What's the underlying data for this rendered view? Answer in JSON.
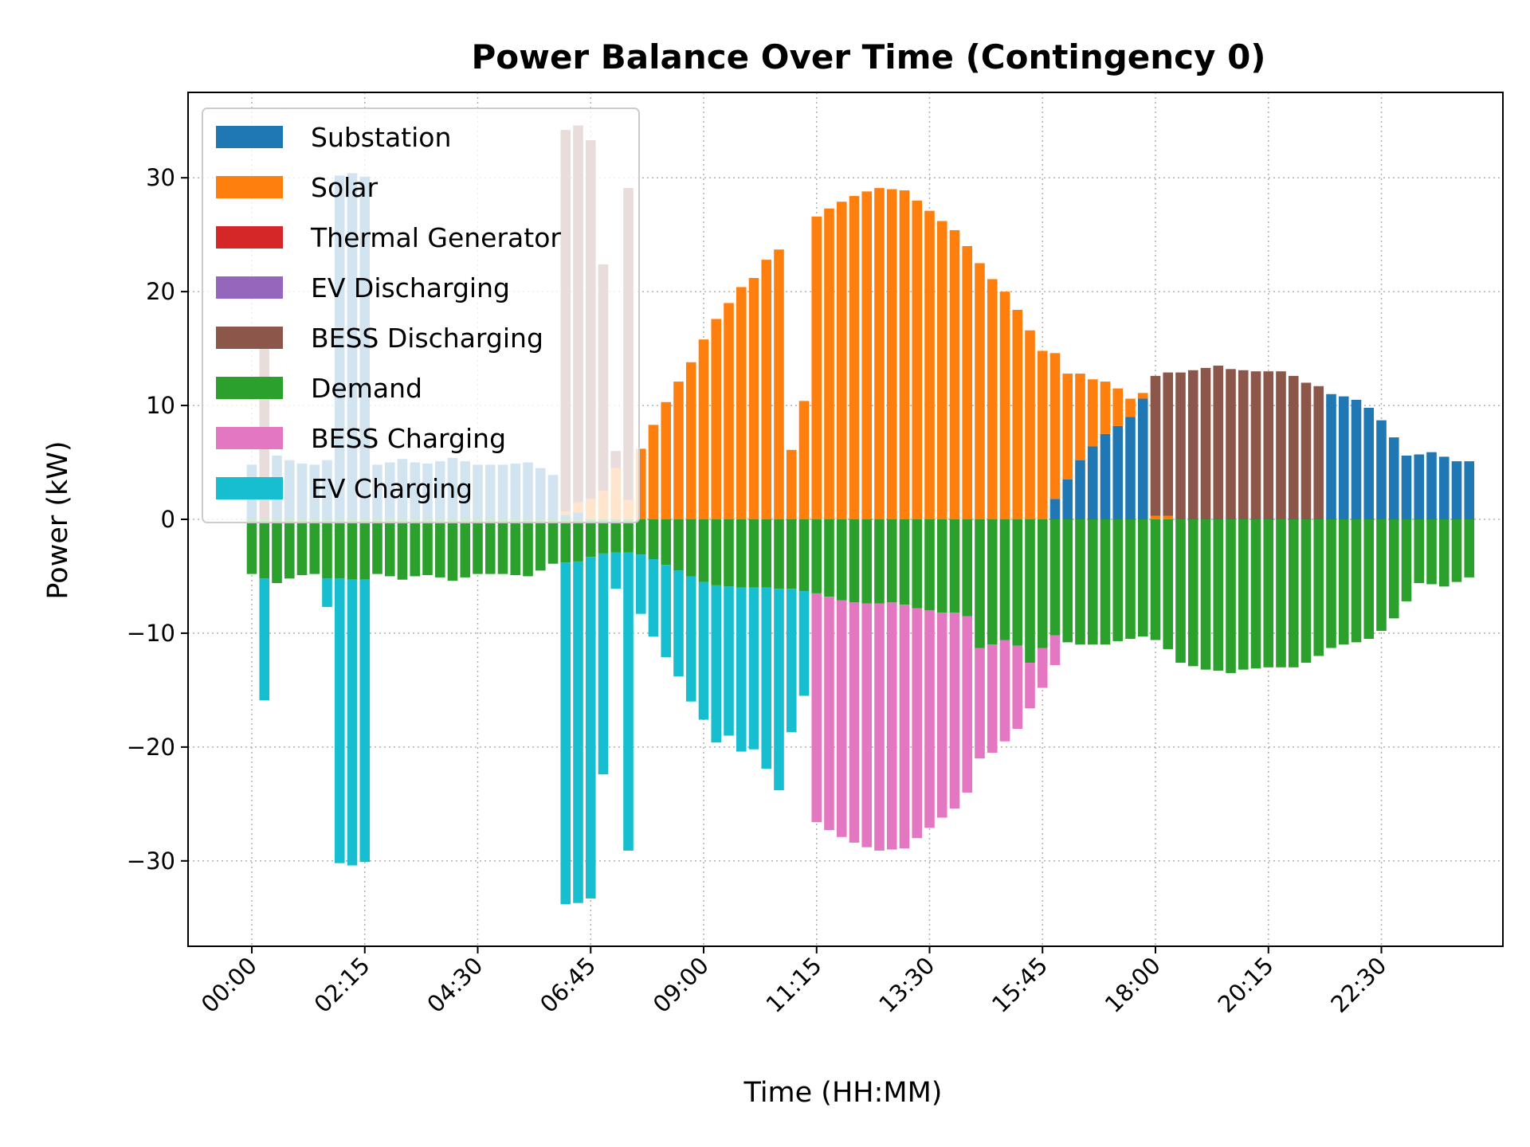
{
  "chart_data": {
    "type": "bar",
    "stacked": true,
    "title": "Power Balance Over Time (Contingency 0)",
    "xlabel": "Time (HH:MM)",
    "ylabel": "Power (kW)",
    "ylim": [
      -37.5,
      37.5
    ],
    "y_ticks": [
      -30,
      -20,
      -10,
      0,
      10,
      20,
      30
    ],
    "y_tick_labels": [
      "−30",
      "−20",
      "−10",
      "0",
      "10",
      "20",
      "30"
    ],
    "x_ticks": [
      "00:00",
      "02:15",
      "04:30",
      "06:45",
      "09:00",
      "11:15",
      "13:30",
      "15:45",
      "18:00",
      "20:15",
      "22:30"
    ],
    "x_tick_indices": [
      0,
      9,
      18,
      27,
      36,
      45,
      54,
      63,
      72,
      81,
      90
    ],
    "interval_minutes": 15,
    "grid": true,
    "legend_position": "upper-left",
    "colors": {
      "Substation": "#1f77b4",
      "Solar": "#ff7f0e",
      "Thermal Generator": "#d62728",
      "EV Discharging": "#9467bd",
      "BESS Discharging": "#8c564b",
      "Demand": "#2ca02c",
      "BESS Charging": "#e377c2",
      "EV Charging": "#17becf"
    },
    "legend": [
      "Substation",
      "Solar",
      "Thermal Generator",
      "EV Discharging",
      "BESS Discharging",
      "Demand",
      "BESS Charging",
      "EV Charging"
    ],
    "series": [
      {
        "name": "Substation",
        "values": [
          4.8,
          0,
          5.6,
          5.2,
          4.9,
          4.8,
          5.2,
          30.2,
          30.4,
          30.1,
          4.8,
          5.0,
          5.3,
          5.0,
          4.9,
          5.1,
          5.4,
          5.1,
          4.8,
          4.8,
          4.8,
          4.9,
          5.0,
          4.5,
          3.9,
          0.4,
          0.6,
          0,
          0,
          0,
          0,
          0,
          0,
          0,
          0,
          0,
          0,
          0,
          0,
          0,
          0,
          0,
          0,
          0,
          0,
          0,
          0,
          0,
          0,
          0,
          0,
          0,
          0,
          0,
          0,
          0,
          0,
          0,
          0,
          0,
          0,
          0,
          0,
          0,
          1.8,
          3.5,
          5.2,
          6.4,
          7.5,
          8.2,
          9.0,
          10.6,
          0,
          0,
          0,
          0,
          0,
          0,
          0,
          0,
          0,
          0,
          0,
          0,
          0,
          0,
          11.0,
          10.8,
          10.5,
          9.8,
          8.7,
          7.2,
          5.6,
          5.7,
          5.9,
          5.5,
          5.1,
          5.1
        ]
      },
      {
        "name": "Solar",
        "values": [
          0,
          0,
          0,
          0,
          0,
          0,
          0,
          0,
          0,
          0,
          0,
          0,
          0,
          0,
          0,
          0,
          0,
          0,
          0,
          0,
          0,
          0,
          0,
          0,
          0,
          0.3,
          0.9,
          1.8,
          2.5,
          4.5,
          1.7,
          6.2,
          8.3,
          10.3,
          12.1,
          13.8,
          15.8,
          17.6,
          19.0,
          20.4,
          21.2,
          22.8,
          23.7,
          6.1,
          10.4,
          26.6,
          27.3,
          27.9,
          28.4,
          28.8,
          29.1,
          29.0,
          28.9,
          28.0,
          27.1,
          26.2,
          25.4,
          24.0,
          22.5,
          21.1,
          20.0,
          18.4,
          16.6,
          14.8,
          12.8,
          9.3,
          7.6,
          5.9,
          4.6,
          3.3,
          1.6,
          0.5,
          0.3,
          0.3,
          0,
          0,
          0,
          0,
          0,
          0,
          0,
          0,
          0,
          0,
          0,
          0,
          0,
          0,
          0,
          0,
          0,
          0,
          0,
          0,
          0,
          0,
          0
        ]
      },
      {
        "name": "Thermal Generator",
        "values": [
          0,
          0,
          0,
          0,
          0,
          0,
          0,
          0,
          0,
          0,
          0,
          0,
          0,
          0,
          0,
          0,
          0,
          0,
          0,
          0,
          0,
          0,
          0,
          0,
          0,
          0,
          0,
          0,
          0,
          0,
          0,
          0,
          0,
          0,
          0,
          0,
          0,
          0,
          0,
          0,
          0,
          0,
          0,
          0,
          0,
          0,
          0,
          0,
          0,
          0,
          0,
          0,
          0,
          0,
          0,
          0,
          0,
          0,
          0,
          0,
          0,
          0,
          0,
          0,
          0,
          0,
          0,
          0,
          0,
          0,
          0,
          0,
          0,
          0,
          0,
          0,
          0,
          0,
          0,
          0,
          0,
          0,
          0,
          0,
          0,
          0,
          0,
          0,
          0,
          0,
          0,
          0,
          0,
          0,
          0,
          0
        ]
      },
      {
        "name": "EV Discharging",
        "values": [
          0,
          0,
          0,
          0,
          0,
          0,
          0,
          0,
          0,
          0,
          0,
          0,
          0,
          0,
          0,
          0,
          0,
          0,
          0,
          0,
          0,
          0,
          0,
          0,
          0,
          0,
          0,
          0,
          0,
          0,
          0,
          0,
          0,
          0,
          0,
          0,
          0,
          0,
          0,
          0,
          0,
          0,
          0,
          0,
          0,
          0,
          0,
          0,
          0,
          0,
          0,
          0,
          0,
          0,
          0,
          0,
          0,
          0,
          0,
          0,
          0,
          0,
          0,
          0,
          0,
          0,
          0,
          0,
          0,
          0,
          0,
          0,
          0,
          0,
          0,
          0,
          0,
          0,
          0,
          0,
          0,
          0,
          0,
          0,
          0,
          0,
          0,
          0,
          0,
          0,
          0,
          0,
          0,
          0,
          0,
          0,
          0
        ]
      },
      {
        "name": "BESS Discharging",
        "values": [
          0,
          15.9,
          0,
          0,
          0,
          0,
          0,
          0,
          0,
          0,
          0,
          0,
          0,
          0,
          0,
          0,
          0,
          0,
          0,
          0,
          0,
          0,
          0,
          0,
          0,
          33.5,
          33.1,
          31.5,
          19.9,
          1.5,
          27.4,
          0,
          0,
          0,
          0,
          0,
          0,
          0,
          0,
          0,
          0,
          0,
          0,
          0,
          0,
          0,
          0,
          0,
          0,
          0,
          0,
          0,
          0,
          0,
          0,
          0,
          0,
          0,
          0,
          0,
          0,
          0,
          0,
          0,
          0,
          0,
          0,
          0,
          0,
          0,
          0,
          0,
          12.3,
          12.6,
          12.9,
          13.1,
          13.3,
          13.5,
          13.2,
          13.1,
          13.0,
          13.0,
          13.0,
          12.6,
          12.0,
          11.7,
          0,
          0,
          0,
          0,
          0,
          0,
          0,
          0,
          0,
          0,
          0,
          0
        ]
      },
      {
        "name": "Demand",
        "values": [
          -4.8,
          -5.2,
          -5.6,
          -5.2,
          -4.9,
          -4.8,
          -5.2,
          -5.2,
          -5.3,
          -5.3,
          -4.8,
          -5.0,
          -5.3,
          -5.0,
          -4.9,
          -5.1,
          -5.4,
          -5.1,
          -4.8,
          -4.8,
          -4.8,
          -4.9,
          -5.0,
          -4.5,
          -3.9,
          -3.8,
          -3.7,
          -3.3,
          -3.0,
          -2.9,
          -2.9,
          -3.1,
          -3.5,
          -4.0,
          -4.5,
          -5.0,
          -5.5,
          -5.8,
          -5.9,
          -6.0,
          -6.0,
          -6.0,
          -6.1,
          -6.1,
          -6.3,
          -6.5,
          -6.8,
          -7.1,
          -7.3,
          -7.4,
          -7.4,
          -7.3,
          -7.5,
          -7.8,
          -8.0,
          -8.2,
          -8.2,
          -8.5,
          -11.3,
          -11.0,
          -10.6,
          -11.1,
          -12.6,
          -11.3,
          -10.2,
          -10.8,
          -11.0,
          -11.0,
          -11.0,
          -10.7,
          -10.5,
          -10.3,
          -10.6,
          -11.4,
          -12.6,
          -12.9,
          -13.2,
          -13.3,
          -13.5,
          -13.2,
          -13.1,
          -13.0,
          -13.0,
          -13.0,
          -12.6,
          -12.0,
          -11.3,
          -11.0,
          -10.8,
          -10.5,
          -9.8,
          -8.7,
          -7.2,
          -5.6,
          -5.7,
          -5.9,
          -5.5,
          -5.1,
          -5.1
        ]
      },
      {
        "name": "BESS Charging",
        "values": [
          0,
          0,
          0,
          0,
          0,
          0,
          0,
          0,
          0,
          0,
          0,
          0,
          0,
          0,
          0,
          0,
          0,
          0,
          0,
          0,
          0,
          0,
          0,
          0,
          0,
          0,
          0,
          0,
          0,
          0,
          0,
          0,
          0,
          0,
          0,
          0,
          0,
          0,
          0,
          0,
          0,
          0,
          0,
          0,
          0,
          -20.1,
          -20.5,
          -20.8,
          -21.1,
          -21.4,
          -21.7,
          -21.7,
          -21.4,
          -20.2,
          -19.1,
          -18.0,
          -17.2,
          -15.5,
          -9.7,
          -9.5,
          -8.9,
          -7.3,
          -4.0,
          -3.5,
          -2.6,
          0,
          0,
          0,
          0,
          0,
          0,
          0,
          0,
          0,
          0,
          0,
          0,
          0,
          0,
          0,
          0,
          0,
          0,
          0,
          0,
          0,
          0,
          0,
          0,
          0,
          0,
          0,
          0,
          0,
          0,
          0,
          0
        ]
      },
      {
        "name": "EV Charging",
        "values": [
          0,
          -10.7,
          0,
          0,
          0,
          0,
          -2.5,
          -25.0,
          -25.1,
          -24.8,
          0,
          0,
          0,
          0,
          0,
          0,
          0,
          0,
          0,
          0,
          0,
          0,
          0,
          0,
          0,
          -30.0,
          -30.0,
          -30.0,
          -19.4,
          -3.2,
          -26.2,
          -5.2,
          -6.8,
          -8.1,
          -9.3,
          -11.0,
          -12.1,
          -13.8,
          -13.1,
          -14.4,
          -14.2,
          -15.9,
          -17.7,
          -12.6,
          -9.2,
          0,
          0,
          0,
          0,
          0,
          0,
          0,
          0,
          0,
          0,
          0,
          0,
          0,
          0,
          0,
          0,
          0,
          0,
          0,
          0,
          0,
          0,
          0,
          0,
          0,
          0,
          0,
          0,
          0,
          0,
          0,
          0,
          0,
          0,
          0,
          0,
          0,
          0,
          0,
          0,
          0,
          0,
          0,
          0,
          0,
          0,
          0,
          0,
          0,
          0,
          0,
          0
        ]
      }
    ]
  }
}
